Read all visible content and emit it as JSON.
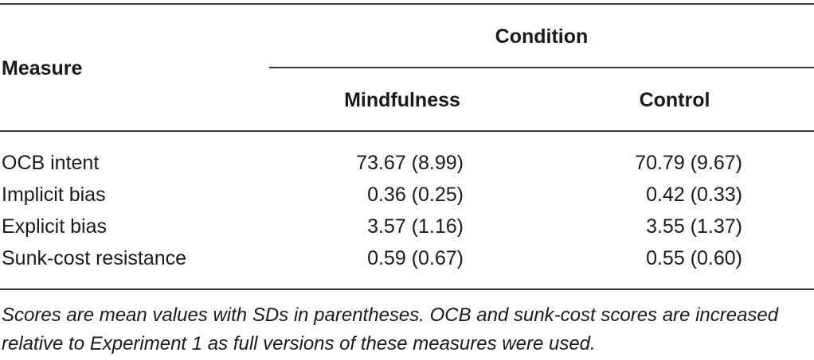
{
  "table": {
    "header": {
      "measure": "Measure",
      "condition": "Condition",
      "columns": [
        "Mindfulness",
        "Control"
      ]
    },
    "rows": [
      {
        "measure": "OCB intent",
        "mindfulness": "73.67 (8.99)",
        "control": "70.79 (9.67)"
      },
      {
        "measure": "Implicit bias",
        "mindfulness": "0.36 (0.25)",
        "control": "0.42 (0.33)"
      },
      {
        "measure": "Explicit bias",
        "mindfulness": "3.57 (1.16)",
        "control": "3.55 (1.37)"
      },
      {
        "measure": "Sunk-cost resistance",
        "mindfulness": "0.59 (0.67)",
        "control": "0.55 (0.60)"
      }
    ],
    "note": "Scores are mean values with SDs in parentheses. OCB and sunk-cost scores are increased relative to Experiment 1 as full versions of these measures were used."
  }
}
